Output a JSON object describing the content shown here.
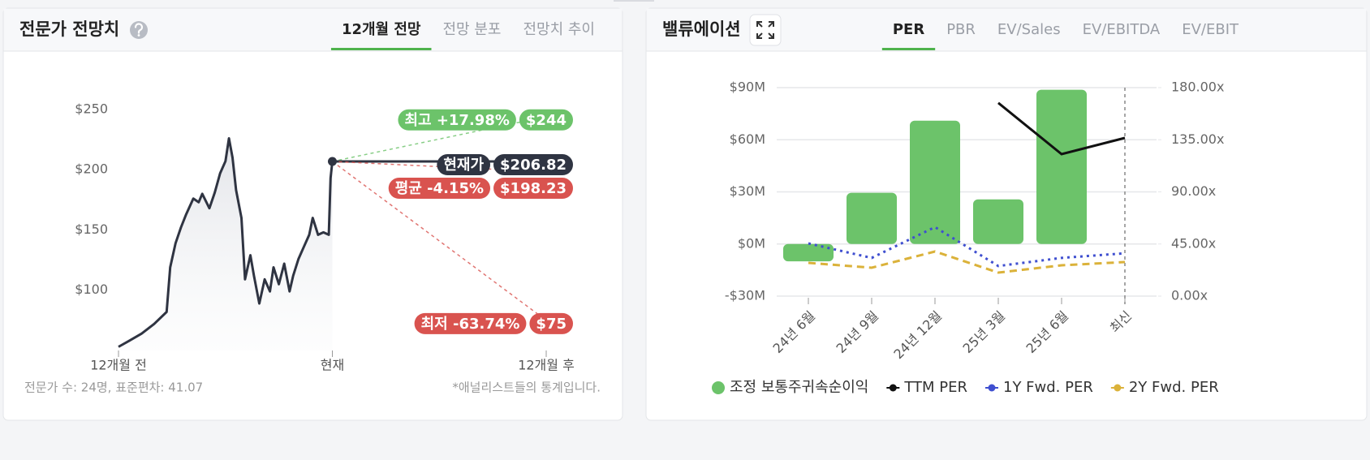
{
  "panels": [
    {
      "title": "전문가 전망치",
      "tabs": [
        "12개월 전망",
        "전망 분포",
        "전망치 추이"
      ],
      "active_tab": 0,
      "footnotes": [
        "전문가 수: 24명, 표준편차: 41.07",
        "*애널리스트들의 통계입니다."
      ]
    },
    {
      "title": "밸류에이션",
      "tabs": [
        "PER",
        "PBR",
        "EV/Sales",
        "EV/EBITDA",
        "EV/EBIT"
      ],
      "active_tab": 0
    }
  ],
  "chart_data": [
    {
      "type": "line",
      "x": [
        -12,
        -11.4,
        -10.7,
        -10,
        -9.3,
        -9.1,
        -8.8,
        -8.5,
        -8.2,
        -7.8,
        -7.5,
        -7.3,
        -6.9,
        -6.6,
        -6.3,
        -6.0,
        -5.8,
        -5.6,
        -5.4,
        -5.1,
        -4.9,
        -4.6,
        -4.4,
        -4.1,
        -3.8,
        -3.5,
        -3.3,
        -3.0,
        -2.7,
        -2.4,
        -2.2,
        -1.9,
        -1.6,
        -1.3,
        -1.1,
        -0.8,
        -0.5,
        -0.2,
        -0.1,
        0
      ],
      "values": [
        53,
        58,
        64,
        72,
        82,
        119,
        139,
        152,
        163,
        176,
        173,
        180,
        168,
        181,
        197,
        207,
        226,
        210,
        183,
        160,
        109,
        129,
        112,
        89,
        109,
        99,
        119,
        105,
        122,
        99,
        112,
        126,
        136,
        146,
        160,
        146,
        148,
        146,
        193,
        206.82
      ],
      "color": "#2f3442",
      "xlim": [
        -12,
        12
      ],
      "xticks": [
        {
          "value": -12,
          "label": "12개월 전"
        },
        {
          "value": 0,
          "label": "현재"
        },
        {
          "value": 12,
          "label": "12개월 후"
        }
      ],
      "ylim": [
        50,
        260
      ],
      "yticks": [
        {
          "value": 100,
          "label": "$100"
        },
        {
          "value": 150,
          "label": "$150"
        },
        {
          "value": 200,
          "label": "$200"
        },
        {
          "value": 250,
          "label": "$250"
        }
      ],
      "targets": [
        {
          "label": "최고 +17.98%",
          "value": 244,
          "value_label": "$244",
          "color": "#6cc36a",
          "line_style": "dashed"
        },
        {
          "label": "현재가",
          "value": 206.82,
          "value_label": "$206.82",
          "color": "#2f3442",
          "line_style": "solid"
        },
        {
          "label": "평균 -4.15%",
          "value": 198.23,
          "value_label": "$198.23",
          "color": "#d9534f",
          "line_style": "dashed"
        },
        {
          "label": "최저 -63.74%",
          "value": 75,
          "value_label": "$75",
          "color": "#d9534f",
          "line_style": "dashed"
        }
      ]
    },
    {
      "type": "combo",
      "categories": [
        "24년 6월",
        "24년 9월",
        "24년 12월",
        "25년 3월",
        "25년 6월",
        "최신"
      ],
      "ylim": [
        -30,
        90
      ],
      "yticks": [
        {
          "value": -30,
          "label": "-$30M"
        },
        {
          "value": 0,
          "label": "$0M"
        },
        {
          "value": 30,
          "label": "$30M"
        },
        {
          "value": 60,
          "label": "$60M"
        },
        {
          "value": 90,
          "label": "$90M"
        }
      ],
      "y2lim": [
        0,
        180
      ],
      "y2ticks": [
        {
          "value": 0,
          "label": "0.00x"
        },
        {
          "value": 45,
          "label": "45.00x"
        },
        {
          "value": 90,
          "label": "90.00x"
        },
        {
          "value": 135,
          "label": "135.00x"
        },
        {
          "value": 180,
          "label": "180.00x"
        }
      ],
      "grid": true,
      "legend": "bottom",
      "series": [
        {
          "name": "조정 보통주귀속순이익",
          "kind": "bar",
          "color": "#6cc36a",
          "values": [
            -10,
            29.5,
            71,
            25.7,
            88.8,
            null
          ]
        },
        {
          "name": "TTM PER",
          "kind": "line",
          "line_style": "solid",
          "axis": "y2",
          "color": "#111111",
          "values": [
            null,
            null,
            null,
            166.8,
            122.6,
            136.6
          ]
        },
        {
          "name": "1Y Fwd. PER",
          "kind": "line",
          "line_style": "dotted",
          "axis": "y2",
          "color": "#3f4fd0",
          "values": [
            45.5,
            33,
            59.6,
            26,
            33,
            37
          ]
        },
        {
          "name": "2Y Fwd. PER",
          "kind": "line",
          "line_style": "dashed",
          "axis": "y2",
          "color": "#dbb23a",
          "values": [
            28.7,
            24.5,
            38.5,
            20.3,
            26.6,
            29.4
          ]
        }
      ]
    }
  ]
}
